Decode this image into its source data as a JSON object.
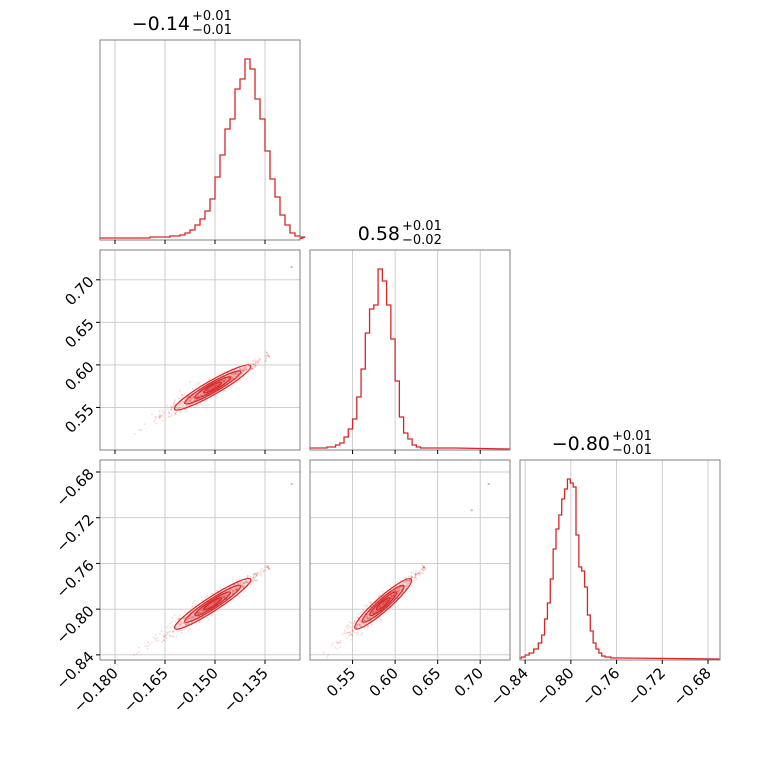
{
  "chart_data": {
    "type": "corner",
    "color": "#d62728",
    "grid": true,
    "parameters": [
      {
        "title": {
          "median": "−0.14",
          "plus": "+0.01",
          "minus": "−0.01"
        },
        "range": [
          -0.1845,
          -0.1245
        ],
        "ticks": [
          -0.18,
          -0.165,
          -0.15,
          -0.135
        ],
        "tick_labels": [
          "−0.180",
          "−0.165",
          "−0.150",
          "−0.135"
        ]
      },
      {
        "title": {
          "median": "0.58",
          "plus": "+0.01",
          "minus": "−0.02"
        },
        "range": [
          0.5,
          0.735
        ],
        "ticks": [
          0.55,
          0.6,
          0.65,
          0.7
        ],
        "tick_labels": [
          "0.55",
          "0.60",
          "0.65",
          "0.70"
        ]
      },
      {
        "title": {
          "median": "−0.80",
          "plus": "+0.01",
          "minus": "−0.01"
        },
        "range": [
          -0.8445,
          -0.6695
        ],
        "ticks": [
          -0.84,
          -0.8,
          -0.76,
          -0.72,
          -0.68
        ],
        "tick_labels": [
          "−0.84",
          "−0.80",
          "−0.76",
          "−0.72",
          "−0.68"
        ]
      }
    ],
    "histograms": [
      {
        "x": [
          -0.1845,
          -0.1815,
          -0.1785,
          -0.1755,
          -0.1725,
          -0.1695,
          -0.1665,
          -0.1635,
          -0.1605,
          -0.159,
          -0.1575,
          -0.156,
          -0.1545,
          -0.153,
          -0.1515,
          -0.15,
          -0.1485,
          -0.147,
          -0.1455,
          -0.144,
          -0.1425,
          -0.141,
          -0.1395,
          -0.138,
          -0.1365,
          -0.135,
          -0.1335,
          -0.132,
          -0.1305,
          -0.129,
          -0.1275,
          -0.126,
          -0.1245
        ],
        "y": [
          0.005,
          0.005,
          0.005,
          0.005,
          0.005,
          0.01,
          0.01,
          0.015,
          0.02,
          0.03,
          0.045,
          0.07,
          0.1,
          0.14,
          0.2,
          0.31,
          0.42,
          0.55,
          0.6,
          0.75,
          0.8,
          0.9,
          0.85,
          0.7,
          0.6,
          0.44,
          0.3,
          0.21,
          0.12,
          0.07,
          0.03,
          0.015,
          0.01
        ]
      },
      {
        "x": [
          0.5,
          0.505,
          0.51,
          0.515,
          0.52,
          0.525,
          0.53,
          0.535,
          0.54,
          0.545,
          0.55,
          0.555,
          0.56,
          0.565,
          0.57,
          0.575,
          0.58,
          0.585,
          0.59,
          0.595,
          0.6,
          0.605,
          0.61,
          0.615,
          0.62,
          0.625,
          0.63,
          0.64,
          0.65,
          0.66
        ],
        "y": [
          0.005,
          0.005,
          0.005,
          0.005,
          0.01,
          0.01,
          0.02,
          0.03,
          0.06,
          0.1,
          0.15,
          0.26,
          0.4,
          0.58,
          0.7,
          0.72,
          0.9,
          0.84,
          0.72,
          0.55,
          0.34,
          0.16,
          0.08,
          0.05,
          0.02,
          0.01,
          0.005,
          0.005,
          0.005,
          0.005
        ]
      },
      {
        "x": [
          -0.8445,
          -0.843,
          -0.84,
          -0.8365,
          -0.8325,
          -0.8285,
          -0.8255,
          -0.823,
          -0.8205,
          -0.818,
          -0.8155,
          -0.813,
          -0.8105,
          -0.808,
          -0.8055,
          -0.803,
          -0.8005,
          -0.798,
          -0.7955,
          -0.793,
          -0.7905,
          -0.788,
          -0.7855,
          -0.783,
          -0.7805,
          -0.778,
          -0.7755,
          -0.773,
          -0.77,
          -0.765,
          -0.76
        ],
        "y": [
          0.005,
          0.01,
          0.02,
          0.03,
          0.05,
          0.08,
          0.12,
          0.2,
          0.28,
          0.4,
          0.55,
          0.65,
          0.72,
          0.8,
          0.85,
          0.9,
          0.88,
          0.86,
          0.62,
          0.46,
          0.44,
          0.36,
          0.22,
          0.14,
          0.08,
          0.05,
          0.03,
          0.015,
          0.01,
          0.005,
          0.005
        ]
      }
    ],
    "correlations": [
      {
        "pair": [
          0,
          1
        ],
        "trend": {
          "x0": -0.1735,
          "y0": 0.5225,
          "x1": -0.1355,
          "y1": 0.6075
        },
        "outliers": [
          {
            "x": -0.127,
            "y": 0.715
          }
        ]
      },
      {
        "pair": [
          0,
          2
        ],
        "trend": {
          "x0": -0.1735,
          "y0": -0.8385,
          "x1": -0.1355,
          "y1": -0.7665
        },
        "outliers": [
          {
            "x": -0.127,
            "y": -0.6905
          }
        ]
      },
      {
        "pair": [
          1,
          2
        ],
        "trend": {
          "x0": 0.52,
          "y0": -0.8385,
          "x1": 0.63,
          "y1": -0.7665
        },
        "outliers": [
          {
            "x": 0.71,
            "y": -0.6905
          },
          {
            "x": 0.69,
            "y": -0.7135
          }
        ]
      }
    ]
  }
}
